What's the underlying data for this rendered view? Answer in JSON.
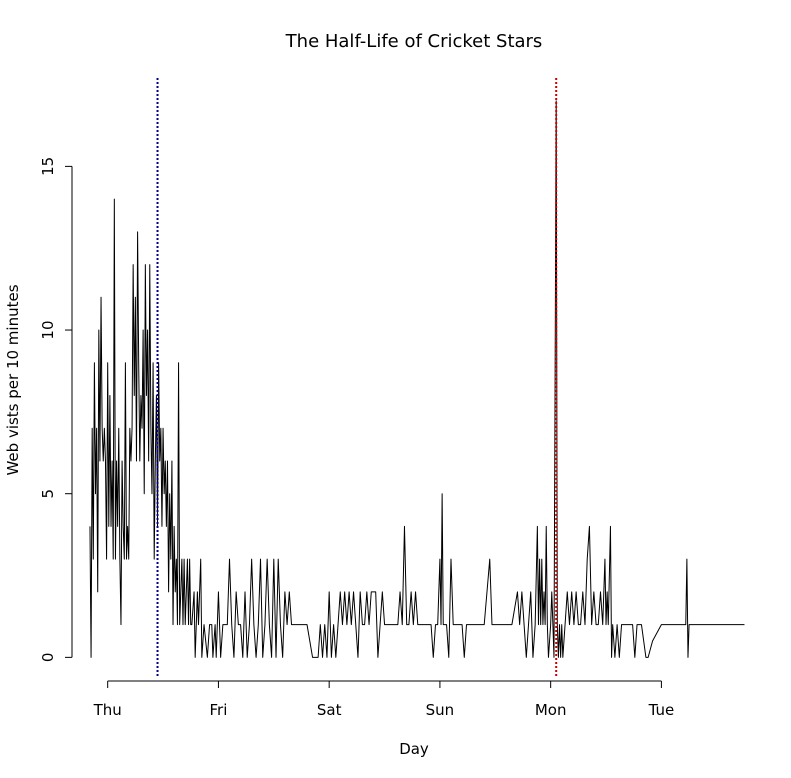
{
  "chart_data": {
    "type": "line",
    "title": "The Half-Life of Cricket Stars",
    "xlabel": "Day",
    "ylabel": "Web vists per 10 minutes",
    "x_ticks": [
      {
        "label": "Thu",
        "day": 0
      },
      {
        "label": "Fri",
        "day": 1
      },
      {
        "label": "Sat",
        "day": 2
      },
      {
        "label": "Sun",
        "day": 3
      },
      {
        "label": "Mon",
        "day": 4
      },
      {
        "label": "Tue",
        "day": 5
      }
    ],
    "y_ticks": [
      0,
      5,
      10,
      15
    ],
    "xlim": [
      -0.25,
      5.8
    ],
    "ylim": [
      -0.6,
      17.7
    ],
    "grid": false,
    "reference_lines": [
      {
        "day": 0.45,
        "color": "#00008b",
        "style": "dotted"
      },
      {
        "day": 4.05,
        "color": "#cc0000",
        "style": "dotted"
      }
    ],
    "series": [
      {
        "color": "#000000",
        "points": [
          [
            -0.16,
            4
          ],
          [
            -0.15,
            0
          ],
          [
            -0.14,
            7
          ],
          [
            -0.13,
            3
          ],
          [
            -0.12,
            9
          ],
          [
            -0.11,
            5
          ],
          [
            -0.1,
            7
          ],
          [
            -0.09,
            2
          ],
          [
            -0.08,
            10
          ],
          [
            -0.07,
            6
          ],
          [
            -0.06,
            11
          ],
          [
            -0.05,
            7
          ],
          [
            -0.04,
            6
          ],
          [
            -0.03,
            7
          ],
          [
            -0.02,
            6
          ],
          [
            -0.01,
            3
          ],
          [
            0.0,
            9
          ],
          [
            0.01,
            4
          ],
          [
            0.02,
            8
          ],
          [
            0.03,
            4
          ],
          [
            0.04,
            6
          ],
          [
            0.05,
            3
          ],
          [
            0.06,
            14
          ],
          [
            0.07,
            3
          ],
          [
            0.08,
            6
          ],
          [
            0.09,
            4
          ],
          [
            0.1,
            7
          ],
          [
            0.11,
            3
          ],
          [
            0.12,
            1
          ],
          [
            0.13,
            6
          ],
          [
            0.14,
            4
          ],
          [
            0.15,
            3
          ],
          [
            0.16,
            9
          ],
          [
            0.17,
            3
          ],
          [
            0.18,
            4
          ],
          [
            0.19,
            3
          ],
          [
            0.2,
            7
          ],
          [
            0.21,
            6
          ],
          [
            0.22,
            7
          ],
          [
            0.23,
            12
          ],
          [
            0.24,
            8
          ],
          [
            0.25,
            11
          ],
          [
            0.26,
            6
          ],
          [
            0.27,
            13
          ],
          [
            0.28,
            9
          ],
          [
            0.29,
            6
          ],
          [
            0.3,
            8
          ],
          [
            0.31,
            7
          ],
          [
            0.32,
            10
          ],
          [
            0.33,
            5
          ],
          [
            0.34,
            12
          ],
          [
            0.35,
            8
          ],
          [
            0.36,
            10
          ],
          [
            0.37,
            6
          ],
          [
            0.38,
            12
          ],
          [
            0.39,
            7
          ],
          [
            0.4,
            5
          ],
          [
            0.41,
            9
          ],
          [
            0.42,
            3
          ],
          [
            0.43,
            6
          ],
          [
            0.44,
            8
          ],
          [
            0.45,
            4
          ],
          [
            0.46,
            9
          ],
          [
            0.47,
            6
          ],
          [
            0.48,
            7
          ],
          [
            0.49,
            4
          ],
          [
            0.5,
            7
          ],
          [
            0.51,
            5
          ],
          [
            0.52,
            6
          ],
          [
            0.53,
            4
          ],
          [
            0.54,
            6
          ],
          [
            0.55,
            2
          ],
          [
            0.56,
            5
          ],
          [
            0.57,
            3
          ],
          [
            0.58,
            6
          ],
          [
            0.59,
            1
          ],
          [
            0.6,
            4
          ],
          [
            0.61,
            2
          ],
          [
            0.62,
            3
          ],
          [
            0.63,
            1
          ],
          [
            0.64,
            9
          ],
          [
            0.65,
            1
          ],
          [
            0.66,
            2
          ],
          [
            0.67,
            3
          ],
          [
            0.68,
            1
          ],
          [
            0.69,
            3
          ],
          [
            0.7,
            1
          ],
          [
            0.71,
            2
          ],
          [
            0.72,
            3
          ],
          [
            0.73,
            1
          ],
          [
            0.74,
            3
          ],
          [
            0.75,
            1
          ],
          [
            0.76,
            1
          ],
          [
            0.78,
            2
          ],
          [
            0.79,
            0
          ],
          [
            0.81,
            2
          ],
          [
            0.82,
            1
          ],
          [
            0.84,
            3
          ],
          [
            0.85,
            0
          ],
          [
            0.87,
            1
          ],
          [
            0.9,
            0
          ],
          [
            0.92,
            1
          ],
          [
            0.94,
            1
          ],
          [
            0.95,
            0
          ],
          [
            0.97,
            1
          ],
          [
            0.98,
            0
          ],
          [
            1.0,
            2
          ],
          [
            1.02,
            0
          ],
          [
            1.04,
            1
          ],
          [
            1.06,
            1
          ],
          [
            1.08,
            1
          ],
          [
            1.1,
            3
          ],
          [
            1.12,
            1
          ],
          [
            1.14,
            0
          ],
          [
            1.16,
            2
          ],
          [
            1.18,
            1
          ],
          [
            1.2,
            1
          ],
          [
            1.22,
            0
          ],
          [
            1.24,
            2
          ],
          [
            1.26,
            0
          ],
          [
            1.28,
            1
          ],
          [
            1.3,
            3
          ],
          [
            1.32,
            1
          ],
          [
            1.34,
            0
          ],
          [
            1.36,
            1
          ],
          [
            1.38,
            3
          ],
          [
            1.4,
            0
          ],
          [
            1.42,
            1
          ],
          [
            1.44,
            3
          ],
          [
            1.46,
            1
          ],
          [
            1.48,
            0
          ],
          [
            1.5,
            3
          ],
          [
            1.52,
            0
          ],
          [
            1.54,
            3
          ],
          [
            1.56,
            1
          ],
          [
            1.58,
            0
          ],
          [
            1.6,
            2
          ],
          [
            1.62,
            1
          ],
          [
            1.64,
            2
          ],
          [
            1.66,
            1
          ],
          [
            1.68,
            1
          ],
          [
            1.72,
            1
          ],
          [
            1.75,
            1
          ],
          [
            1.8,
            1
          ],
          [
            1.85,
            0
          ],
          [
            1.9,
            0
          ],
          [
            1.92,
            1
          ],
          [
            1.94,
            0
          ],
          [
            1.96,
            1
          ],
          [
            1.98,
            0
          ],
          [
            2.0,
            2
          ],
          [
            2.02,
            0
          ],
          [
            2.04,
            1
          ],
          [
            2.06,
            0
          ],
          [
            2.08,
            1
          ],
          [
            2.1,
            2
          ],
          [
            2.12,
            1
          ],
          [
            2.14,
            2
          ],
          [
            2.16,
            1
          ],
          [
            2.18,
            2
          ],
          [
            2.2,
            1
          ],
          [
            2.22,
            2
          ],
          [
            2.24,
            1
          ],
          [
            2.26,
            0
          ],
          [
            2.28,
            2
          ],
          [
            2.3,
            1
          ],
          [
            2.32,
            1
          ],
          [
            2.34,
            2
          ],
          [
            2.36,
            1
          ],
          [
            2.38,
            2
          ],
          [
            2.4,
            2
          ],
          [
            2.42,
            2
          ],
          [
            2.44,
            0
          ],
          [
            2.46,
            1
          ],
          [
            2.48,
            2
          ],
          [
            2.5,
            1
          ],
          [
            2.52,
            1
          ],
          [
            2.56,
            1
          ],
          [
            2.6,
            1
          ],
          [
            2.62,
            1
          ],
          [
            2.64,
            2
          ],
          [
            2.66,
            1
          ],
          [
            2.68,
            4
          ],
          [
            2.7,
            1
          ],
          [
            2.72,
            1
          ],
          [
            2.74,
            2
          ],
          [
            2.76,
            1
          ],
          [
            2.78,
            2
          ],
          [
            2.8,
            1
          ],
          [
            2.84,
            1
          ],
          [
            2.88,
            1
          ],
          [
            2.92,
            1
          ],
          [
            2.94,
            0
          ],
          [
            2.96,
            1
          ],
          [
            2.98,
            1
          ],
          [
            3.0,
            3
          ],
          [
            3.01,
            1
          ],
          [
            3.02,
            5
          ],
          [
            3.03,
            1
          ],
          [
            3.04,
            1
          ],
          [
            3.06,
            1
          ],
          [
            3.08,
            0
          ],
          [
            3.1,
            3
          ],
          [
            3.12,
            1
          ],
          [
            3.14,
            1
          ],
          [
            3.18,
            1
          ],
          [
            3.2,
            1
          ],
          [
            3.22,
            0
          ],
          [
            3.24,
            1
          ],
          [
            3.28,
            1
          ],
          [
            3.32,
            1
          ],
          [
            3.36,
            1
          ],
          [
            3.4,
            1
          ],
          [
            3.45,
            3
          ],
          [
            3.47,
            1
          ],
          [
            3.52,
            1
          ],
          [
            3.55,
            1
          ],
          [
            3.6,
            1
          ],
          [
            3.65,
            1
          ],
          [
            3.7,
            2
          ],
          [
            3.72,
            1
          ],
          [
            3.74,
            2
          ],
          [
            3.76,
            1
          ],
          [
            3.78,
            0
          ],
          [
            3.8,
            1
          ],
          [
            3.82,
            2
          ],
          [
            3.84,
            0
          ],
          [
            3.86,
            1
          ],
          [
            3.88,
            4
          ],
          [
            3.89,
            1
          ],
          [
            3.9,
            3
          ],
          [
            3.91,
            1
          ],
          [
            3.92,
            3
          ],
          [
            3.93,
            1
          ],
          [
            3.94,
            2
          ],
          [
            3.95,
            1
          ],
          [
            3.96,
            4
          ],
          [
            3.97,
            1
          ],
          [
            3.98,
            0
          ],
          [
            4.0,
            1
          ],
          [
            4.01,
            2
          ],
          [
            4.02,
            1
          ],
          [
            4.03,
            0
          ],
          [
            4.05,
            17
          ],
          [
            4.06,
            1
          ],
          [
            4.07,
            0
          ],
          [
            4.08,
            1
          ],
          [
            4.09,
            0
          ],
          [
            4.1,
            1
          ],
          [
            4.11,
            0
          ],
          [
            4.13,
            1
          ],
          [
            4.15,
            2
          ],
          [
            4.17,
            1
          ],
          [
            4.19,
            2
          ],
          [
            4.21,
            1
          ],
          [
            4.23,
            2
          ],
          [
            4.25,
            1
          ],
          [
            4.27,
            1
          ],
          [
            4.29,
            2
          ],
          [
            4.31,
            1
          ],
          [
            4.33,
            3
          ],
          [
            4.35,
            4
          ],
          [
            4.37,
            1
          ],
          [
            4.39,
            2
          ],
          [
            4.41,
            1
          ],
          [
            4.43,
            1
          ],
          [
            4.45,
            2
          ],
          [
            4.47,
            1
          ],
          [
            4.49,
            3
          ],
          [
            4.5,
            1
          ],
          [
            4.51,
            2
          ],
          [
            4.52,
            1
          ],
          [
            4.54,
            4
          ],
          [
            4.55,
            0
          ],
          [
            4.56,
            1
          ],
          [
            4.58,
            0
          ],
          [
            4.6,
            1
          ],
          [
            4.62,
            0
          ],
          [
            4.64,
            1
          ],
          [
            4.66,
            1
          ],
          [
            4.7,
            1
          ],
          [
            4.74,
            1
          ],
          [
            4.76,
            0
          ],
          [
            4.78,
            1
          ],
          [
            4.82,
            1
          ],
          [
            4.86,
            0
          ],
          [
            4.88,
            0
          ],
          [
            4.92,
            0.5
          ],
          [
            5.0,
            1
          ],
          [
            5.08,
            1
          ],
          [
            5.1,
            1
          ],
          [
            5.14,
            1
          ],
          [
            5.18,
            1
          ],
          [
            5.22,
            1
          ],
          [
            5.23,
            3
          ],
          [
            5.24,
            0
          ],
          [
            5.25,
            1
          ],
          [
            5.3,
            1
          ],
          [
            5.5,
            1
          ],
          [
            5.75,
            1
          ]
        ]
      }
    ]
  }
}
